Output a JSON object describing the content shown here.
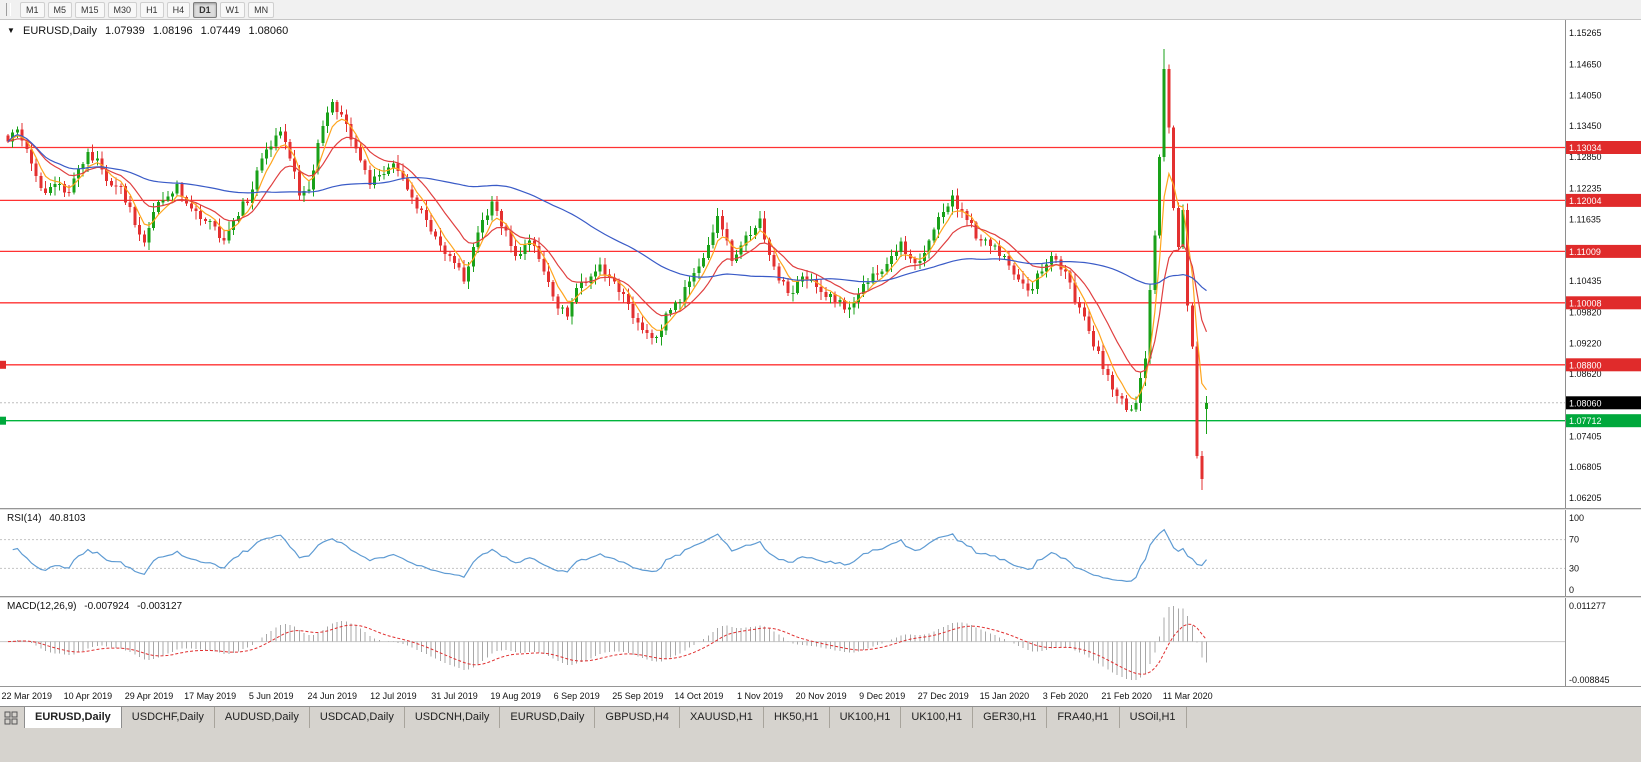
{
  "icons": {
    "collapse": "▼"
  },
  "toolbar": {
    "timeframes": [
      {
        "label": "M1",
        "active": false
      },
      {
        "label": "M5",
        "active": false
      },
      {
        "label": "M15",
        "active": false
      },
      {
        "label": "M30",
        "active": false
      },
      {
        "label": "H1",
        "active": false
      },
      {
        "label": "H4",
        "active": false
      },
      {
        "label": "D1",
        "active": true
      },
      {
        "label": "W1",
        "active": false
      },
      {
        "label": "MN",
        "active": false
      }
    ]
  },
  "main_chart": {
    "symbol": "EURUSD,Daily",
    "open": "1.07939",
    "high": "1.08196",
    "low": "1.07449",
    "close": "1.08060",
    "price_ticks": [
      "1.15265",
      "1.14650",
      "1.14050",
      "1.13450",
      "1.12850",
      "1.12235",
      "1.11635",
      "1.10435",
      "1.09820",
      "1.09220",
      "1.08620",
      "1.07405",
      "1.06805",
      "1.06205"
    ],
    "badges": [
      {
        "text": "1.13034",
        "color": "#E02B2B"
      },
      {
        "text": "1.12004",
        "color": "#E02B2B"
      },
      {
        "text": "1.11009",
        "color": "#E02B2B"
      },
      {
        "text": "1.10008",
        "color": "#E02B2B"
      },
      {
        "text": "1.08800",
        "color": "#E02B2B"
      },
      {
        "text": "1.08060",
        "color": "#000000"
      },
      {
        "text": "1.07712",
        "color": "#00A83C"
      }
    ]
  },
  "rsi_panel": {
    "label": "RSI(14)",
    "value": "40.8103",
    "ticks": [
      "100",
      "70",
      "30",
      "0"
    ],
    "dashed_levels": [
      70,
      30
    ]
  },
  "macd_panel": {
    "label": "MACD(12,26,9)",
    "main_value": "-0.007924",
    "signal_value": "-0.003127",
    "top_tick": "0.011277",
    "bottom_tick": "-0.008845"
  },
  "date_axis": {
    "labels": [
      "22 Mar 2019",
      "10 Apr 2019",
      "29 Apr 2019",
      "17 May 2019",
      "5 Jun 2019",
      "24 Jun 2019",
      "12 Jul 2019",
      "31 Jul 2019",
      "19 Aug 2019",
      "6 Sep 2019",
      "25 Sep 2019",
      "14 Oct 2019",
      "1 Nov 2019",
      "20 Nov 2019",
      "9 Dec 2019",
      "27 Dec 2019",
      "15 Jan 2020",
      "3 Feb 2020",
      "21 Feb 2020",
      "11 Mar 2020"
    ]
  },
  "tab_bar": {
    "tabs": [
      {
        "label": "EURUSD,Daily",
        "active": true
      },
      {
        "label": "USDCHF,Daily",
        "active": false
      },
      {
        "label": "AUDUSD,Daily",
        "active": false
      },
      {
        "label": "USDCAD,Daily",
        "active": false
      },
      {
        "label": "USDCNH,Daily",
        "active": false
      },
      {
        "label": "EURUSD,Daily",
        "active": false
      },
      {
        "label": "GBPUSD,H4",
        "active": false
      },
      {
        "label": "XAUUSD,H1",
        "active": false
      },
      {
        "label": "HK50,H1",
        "active": false
      },
      {
        "label": "UK100,H1",
        "active": false
      },
      {
        "label": "UK100,H1",
        "active": false
      },
      {
        "label": "GER30,H1",
        "active": false
      },
      {
        "label": "FRA40,H1",
        "active": false
      },
      {
        "label": "USOil,H1",
        "active": false
      }
    ]
  },
  "chart_data": {
    "type": "candlestick",
    "symbol": "EURUSD",
    "period": "Daily",
    "visible_range": {
      "price_top": 1.15265,
      "price_bottom": 1.06205
    },
    "candle_count": 256,
    "candle_colors": {
      "up": "#19A119",
      "down": "#E33030"
    },
    "close_anchors": [
      [
        0,
        1.1315
      ],
      [
        2,
        1.1338
      ],
      [
        4,
        1.13
      ],
      [
        6,
        1.1248
      ],
      [
        8,
        1.1215
      ],
      [
        10,
        1.1232
      ],
      [
        13,
        1.1216
      ],
      [
        15,
        1.1262
      ],
      [
        17,
        1.1295
      ],
      [
        19,
        1.1282
      ],
      [
        21,
        1.1238
      ],
      [
        24,
        1.1228
      ],
      [
        27,
        1.1152
      ],
      [
        29,
        1.1118
      ],
      [
        31,
        1.1178
      ],
      [
        33,
        1.12
      ],
      [
        36,
        1.1232
      ],
      [
        39,
        1.1185
      ],
      [
        43,
        1.116
      ],
      [
        46,
        1.1122
      ],
      [
        49,
        1.117
      ],
      [
        52,
        1.1222
      ],
      [
        54,
        1.1282
      ],
      [
        56,
        1.1305
      ],
      [
        58,
        1.1335
      ],
      [
        60,
        1.1282
      ],
      [
        62,
        1.121
      ],
      [
        64,
        1.1222
      ],
      [
        66,
        1.1312
      ],
      [
        68,
        1.1372
      ],
      [
        69,
        1.1392
      ],
      [
        71,
        1.1368
      ],
      [
        74,
        1.1302
      ],
      [
        77,
        1.123
      ],
      [
        80,
        1.1252
      ],
      [
        82,
        1.1272
      ],
      [
        85,
        1.1222
      ],
      [
        88,
        1.1182
      ],
      [
        91,
        1.113
      ],
      [
        94,
        1.1092
      ],
      [
        95,
        1.1078
      ],
      [
        97,
        1.1042
      ],
      [
        99,
        1.111
      ],
      [
        101,
        1.1162
      ],
      [
        103,
        1.1198
      ],
      [
        106,
        1.1142
      ],
      [
        108,
        1.1092
      ],
      [
        111,
        1.1122
      ],
      [
        114,
        1.1062
      ],
      [
        117,
        1.099
      ],
      [
        119,
        1.0974
      ],
      [
        121,
        1.103
      ],
      [
        124,
        1.1052
      ],
      [
        126,
        1.1075
      ],
      [
        129,
        1.1042
      ],
      [
        131,
        1.1018
      ],
      [
        134,
        1.0962
      ],
      [
        136,
        1.0942
      ],
      [
        138,
        1.0934
      ],
      [
        140,
        1.098
      ],
      [
        143,
        1.1002
      ],
      [
        145,
        1.1042
      ],
      [
        147,
        1.1072
      ],
      [
        151,
        1.117
      ],
      [
        154,
        1.1082
      ],
      [
        157,
        1.1132
      ],
      [
        160,
        1.1165
      ],
      [
        163,
        1.1072
      ],
      [
        166,
        1.102
      ],
      [
        169,
        1.1052
      ],
      [
        172,
        1.1032
      ],
      [
        173,
        1.1022
      ],
      [
        176,
        1.1002
      ],
      [
        179,
        1.0992
      ],
      [
        181,
        1.1018
      ],
      [
        184,
        1.1058
      ],
      [
        186,
        1.1062
      ],
      [
        188,
        1.1092
      ],
      [
        190,
        1.112
      ],
      [
        193,
        1.1078
      ],
      [
        196,
        1.1122
      ],
      [
        199,
        1.1178
      ],
      [
        201,
        1.121
      ],
      [
        204,
        1.1162
      ],
      [
        207,
        1.1122
      ],
      [
        210,
        1.1112
      ],
      [
        212,
        1.1092
      ],
      [
        215,
        1.1046
      ],
      [
        217,
        1.1025
      ],
      [
        220,
        1.1062
      ],
      [
        222,
        1.1092
      ],
      [
        225,
        1.1062
      ],
      [
        227,
        1.1002
      ],
      [
        230,
        1.0946
      ],
      [
        233,
        1.0872
      ],
      [
        235,
        1.0832
      ],
      [
        238,
        1.0792
      ],
      [
        240,
        1.0806
      ],
      [
        242,
        1.0892
      ],
      [
        243,
        1.1026
      ],
      [
        244,
        1.1132
      ],
      [
        245,
        1.1285
      ],
      [
        246,
        1.1456
      ],
      [
        247,
        1.1342
      ],
      [
        248,
        1.1186
      ],
      [
        249,
        1.111
      ],
      [
        250,
        1.1182
      ],
      [
        251,
        1.0996
      ],
      [
        252,
        1.0916
      ],
      [
        253,
        1.0702
      ],
      [
        254,
        1.0658
      ],
      [
        255,
        1.0806
      ]
    ],
    "overrides": [
      {
        "i": 246,
        "high": 1.1495
      },
      {
        "i": 254,
        "low": 1.0636
      },
      {
        "i": 255,
        "open": 1.07939,
        "high": 1.08196,
        "low": 1.07449,
        "close": 1.0806
      }
    ],
    "horizontal_levels": [
      {
        "price": 1.13034,
        "color": "#FF3232"
      },
      {
        "price": 1.12004,
        "color": "#FF3232"
      },
      {
        "price": 1.11009,
        "color": "#FF3232"
      },
      {
        "price": 1.10008,
        "color": "#FF3232"
      },
      {
        "price": 1.088,
        "color": "#FF3232"
      },
      {
        "price": 1.07712,
        "color": "#00B43C"
      }
    ],
    "left_markers": [
      {
        "price": 1.088,
        "color": "#E02B2B"
      },
      {
        "price": 1.07712,
        "color": "#00A83C"
      }
    ],
    "current_price": 1.0806,
    "moving_averages": [
      {
        "method": "ema",
        "period": 5,
        "color": "#FFA51E"
      },
      {
        "method": "ema",
        "period": 13,
        "color": "#E04040"
      },
      {
        "method": "sma",
        "period": 55,
        "color": "#3A5BC7"
      }
    ],
    "indicators": [
      {
        "type": "rsi",
        "period": 14,
        "last": 40.8103,
        "color": "#5E9BD3",
        "levels": [
          70,
          30
        ],
        "range": [
          0,
          100
        ]
      },
      {
        "type": "macd",
        "fast": 12,
        "slow": 26,
        "signal": 9,
        "main_last": -0.007924,
        "signal_last": -0.003127,
        "histogram_color": "#A8A8A8",
        "signal_color": "#E03030",
        "scale_top": 0.011277,
        "scale_bottom": -0.008845
      }
    ],
    "first_label_index": 4,
    "date_labels_step": 13
  }
}
